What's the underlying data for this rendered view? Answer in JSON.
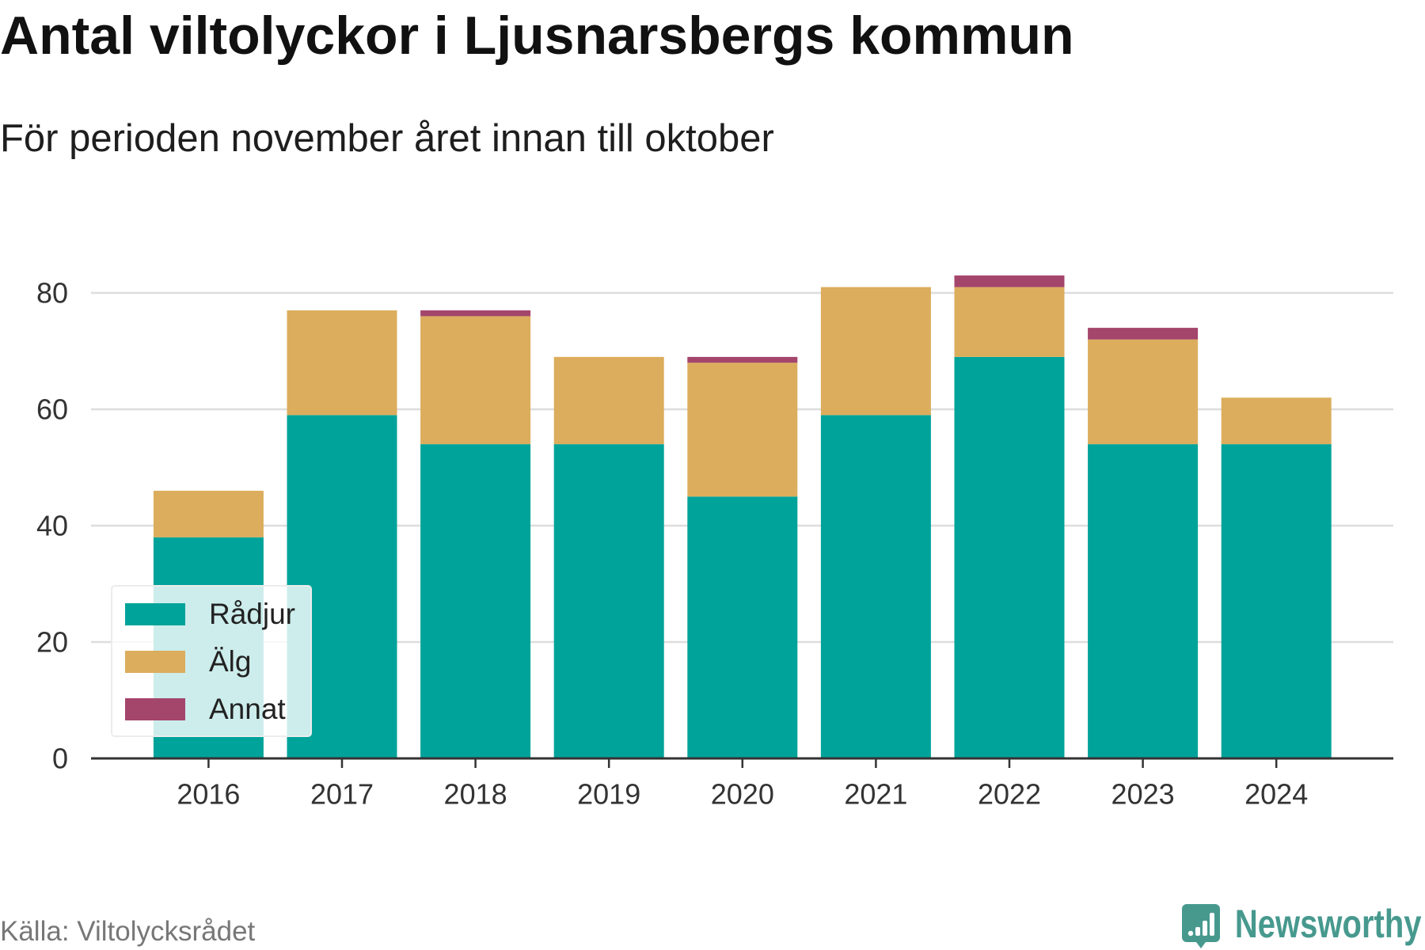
{
  "chart_data": {
    "type": "bar",
    "stacked": true,
    "title": "Antal viltolyckor i Ljusnarsbergs kommun",
    "subtitle": "För perioden november året innan till oktober",
    "categories": [
      "2016",
      "2017",
      "2018",
      "2019",
      "2020",
      "2021",
      "2022",
      "2023",
      "2024"
    ],
    "series": [
      {
        "name": "Rådjur",
        "color": "#00a39a",
        "values": [
          38,
          59,
          54,
          54,
          45,
          59,
          69,
          54,
          54
        ]
      },
      {
        "name": "Älg",
        "color": "#dbad5c",
        "values": [
          8,
          18,
          22,
          15,
          23,
          22,
          12,
          18,
          8
        ]
      },
      {
        "name": "Annat",
        "color": "#a4456c",
        "values": [
          0,
          0,
          1,
          0,
          1,
          0,
          2,
          2,
          0
        ]
      }
    ],
    "yticks": [
      0,
      20,
      40,
      60,
      80
    ],
    "grid": true,
    "legend_position": "bottom-left"
  },
  "source": "Källa: Viltolycksrådet",
  "brand": {
    "name": "Newsworthy",
    "icon": "newsworthy-logo-icon",
    "color": "#47998e"
  }
}
